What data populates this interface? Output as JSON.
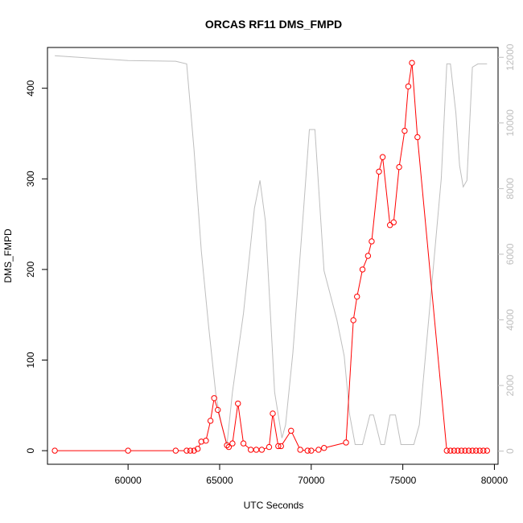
{
  "chart_data": {
    "type": "line",
    "title": "ORCAS RF11 DMS_FMPD",
    "xlabel": "UTC Seconds",
    "ylabel": "DMS_FMPD",
    "xlim": [
      55600,
      80200
    ],
    "ylim": [
      -15,
      445
    ],
    "y2lim": [
      -400,
      12300
    ],
    "x_ticks": [
      60000,
      65000,
      70000,
      75000,
      80000
    ],
    "y_ticks": [
      0,
      100,
      200,
      300,
      400
    ],
    "y2_ticks": [
      0,
      2000,
      4000,
      6000,
      8000,
      10000,
      12000
    ],
    "series": [
      {
        "role": "primary",
        "color": "#ff0000",
        "markers": "open-circle",
        "points": [
          [
            56000,
            0
          ],
          [
            60000,
            0
          ],
          [
            62600,
            0
          ],
          [
            63200,
            0
          ],
          [
            63400,
            0
          ],
          [
            63600,
            0
          ],
          [
            63800,
            2
          ],
          [
            64000,
            10
          ],
          [
            64250,
            11
          ],
          [
            64500,
            33
          ],
          [
            64700,
            58
          ],
          [
            64900,
            45
          ],
          [
            65400,
            6
          ],
          [
            65500,
            4
          ],
          [
            65700,
            8
          ],
          [
            66000,
            52
          ],
          [
            66300,
            8
          ],
          [
            66700,
            1
          ],
          [
            67000,
            1
          ],
          [
            67300,
            1
          ],
          [
            67700,
            4
          ],
          [
            67900,
            41
          ],
          [
            68200,
            5
          ],
          [
            68350,
            5
          ],
          [
            68900,
            22
          ],
          [
            69400,
            1
          ],
          [
            69800,
            0
          ],
          [
            70000,
            0
          ],
          [
            70400,
            1
          ],
          [
            70700,
            3
          ],
          [
            71900,
            9
          ],
          [
            72300,
            144
          ],
          [
            72500,
            170
          ],
          [
            72800,
            200
          ],
          [
            73100,
            215
          ],
          [
            73300,
            231
          ],
          [
            73700,
            308
          ],
          [
            73900,
            324
          ],
          [
            74300,
            249
          ],
          [
            74500,
            252
          ],
          [
            74800,
            313
          ],
          [
            75100,
            353
          ],
          [
            75300,
            402
          ],
          [
            75500,
            428
          ],
          [
            75800,
            346
          ],
          [
            77400,
            0
          ],
          [
            77600,
            0
          ],
          [
            77800,
            0
          ],
          [
            78000,
            0
          ],
          [
            78200,
            0
          ],
          [
            78400,
            0
          ],
          [
            78600,
            0
          ],
          [
            78800,
            0
          ],
          [
            79000,
            0
          ],
          [
            79200,
            0
          ],
          [
            79400,
            0
          ],
          [
            79600,
            0
          ]
        ]
      },
      {
        "role": "secondary",
        "color": "#bebebe",
        "markers": "none",
        "points": [
          [
            56000,
            12050
          ],
          [
            60000,
            11900
          ],
          [
            62600,
            11880
          ],
          [
            63200,
            11800
          ],
          [
            63600,
            9200
          ],
          [
            64000,
            6100
          ],
          [
            64400,
            3800
          ],
          [
            64800,
            1700
          ],
          [
            65100,
            800
          ],
          [
            65400,
            200
          ],
          [
            65700,
            1800
          ],
          [
            66300,
            4200
          ],
          [
            66900,
            7400
          ],
          [
            67200,
            8250
          ],
          [
            67500,
            7000
          ],
          [
            68000,
            1800
          ],
          [
            68400,
            400
          ],
          [
            68600,
            800
          ],
          [
            69000,
            3000
          ],
          [
            69600,
            7500
          ],
          [
            69900,
            9800
          ],
          [
            70200,
            9800
          ],
          [
            70700,
            5500
          ],
          [
            71400,
            4000
          ],
          [
            71800,
            2900
          ],
          [
            72100,
            1100
          ],
          [
            72400,
            200
          ],
          [
            72800,
            200
          ],
          [
            73200,
            1100
          ],
          [
            73400,
            1100
          ],
          [
            73800,
            200
          ],
          [
            74000,
            200
          ],
          [
            74300,
            1100
          ],
          [
            74600,
            1100
          ],
          [
            74900,
            200
          ],
          [
            75100,
            200
          ],
          [
            75600,
            200
          ],
          [
            75900,
            800
          ],
          [
            76700,
            5800
          ],
          [
            77100,
            8300
          ],
          [
            77400,
            11800
          ],
          [
            77600,
            11800
          ],
          [
            77900,
            10300
          ],
          [
            78100,
            8700
          ],
          [
            78300,
            8050
          ],
          [
            78500,
            8250
          ],
          [
            78800,
            11700
          ],
          [
            79100,
            11800
          ],
          [
            79600,
            11800
          ]
        ]
      }
    ]
  }
}
